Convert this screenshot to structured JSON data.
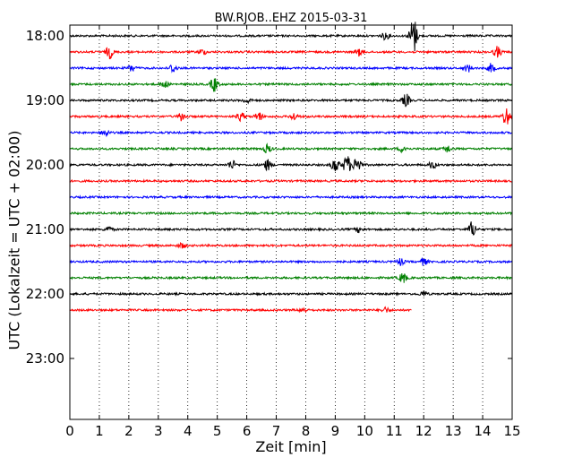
{
  "chart_data": {
    "type": "line",
    "title": "BW.RJOB..EHZ 2015-03-31",
    "xlabel": "Zeit  [min]",
    "ylabel": "UTC (Lokalzeit = UTC + 02:00)",
    "xlim": [
      0,
      15
    ],
    "x_ticks": [
      0,
      1,
      2,
      3,
      4,
      5,
      6,
      7,
      8,
      9,
      10,
      11,
      12,
      13,
      14,
      15
    ],
    "x_tick_labels": [
      "0",
      "1",
      "2",
      "3",
      "4",
      "5",
      "6",
      "7",
      "8",
      "9",
      "10",
      "11",
      "12",
      "13",
      "14",
      "15"
    ],
    "y_tick_labels": [
      "18:00",
      "19:00",
      "20:00",
      "21:00",
      "22:00",
      "23:00"
    ],
    "grid": "vertical-dotted",
    "trace_colors": [
      "#000000",
      "#ff0000",
      "#0000ff",
      "#008000"
    ],
    "series": [
      {
        "start": "18:00",
        "end_min": 15,
        "events": [
          {
            "t": 10.7,
            "amp": 4
          },
          {
            "t": 11.65,
            "amp": 22
          }
        ]
      },
      {
        "start": "18:15",
        "end_min": 15,
        "events": [
          {
            "t": 1.35,
            "amp": 7
          },
          {
            "t": 4.5,
            "amp": 3
          },
          {
            "t": 9.8,
            "amp": 4
          },
          {
            "t": 14.5,
            "amp": 6
          }
        ]
      },
      {
        "start": "18:30",
        "end_min": 15,
        "events": [
          {
            "t": 2.1,
            "amp": 4
          },
          {
            "t": 3.5,
            "amp": 5
          },
          {
            "t": 13.5,
            "amp": 4
          },
          {
            "t": 14.3,
            "amp": 5
          }
        ]
      },
      {
        "start": "18:45",
        "end_min": 15,
        "events": [
          {
            "t": 3.2,
            "amp": 4
          },
          {
            "t": 4.9,
            "amp": 8
          }
        ]
      },
      {
        "start": "19:00",
        "end_min": 15,
        "events": [
          {
            "t": 6.0,
            "amp": 3
          },
          {
            "t": 11.4,
            "amp": 7
          }
        ]
      },
      {
        "start": "19:15",
        "end_min": 15,
        "events": [
          {
            "t": 3.8,
            "amp": 5
          },
          {
            "t": 5.8,
            "amp": 5
          },
          {
            "t": 6.4,
            "amp": 5
          },
          {
            "t": 7.6,
            "amp": 4
          },
          {
            "t": 14.8,
            "amp": 10
          }
        ]
      },
      {
        "start": "19:30",
        "end_min": 15,
        "events": [
          {
            "t": 1.2,
            "amp": 4
          }
        ]
      },
      {
        "start": "19:45",
        "end_min": 15,
        "events": [
          {
            "t": 6.7,
            "amp": 5
          },
          {
            "t": 11.3,
            "amp": 4
          },
          {
            "t": 12.8,
            "amp": 4
          }
        ]
      },
      {
        "start": "20:00",
        "end_min": 15,
        "events": [
          {
            "t": 5.5,
            "amp": 5
          },
          {
            "t": 6.7,
            "amp": 6
          },
          {
            "t": 9.0,
            "amp": 9
          },
          {
            "t": 9.4,
            "amp": 11
          },
          {
            "t": 9.75,
            "amp": 11
          },
          {
            "t": 12.3,
            "amp": 4
          }
        ]
      },
      {
        "start": "20:15",
        "end_min": 15,
        "events": []
      },
      {
        "start": "20:30",
        "end_min": 15,
        "events": []
      },
      {
        "start": "20:45",
        "end_min": 15,
        "events": []
      },
      {
        "start": "21:00",
        "end_min": 15,
        "events": [
          {
            "t": 1.3,
            "amp": 3
          },
          {
            "t": 9.8,
            "amp": 3
          },
          {
            "t": 13.65,
            "amp": 9
          }
        ]
      },
      {
        "start": "21:15",
        "end_min": 15,
        "events": [
          {
            "t": 3.8,
            "amp": 3
          }
        ]
      },
      {
        "start": "21:30",
        "end_min": 15,
        "events": [
          {
            "t": 11.2,
            "amp": 4
          },
          {
            "t": 12.0,
            "amp": 4
          }
        ]
      },
      {
        "start": "21:45",
        "end_min": 15,
        "events": [
          {
            "t": 11.3,
            "amp": 6
          }
        ]
      },
      {
        "start": "22:00",
        "end_min": 15,
        "events": [
          {
            "t": 12.0,
            "amp": 3
          }
        ]
      },
      {
        "start": "22:15",
        "end_min": 11.6,
        "events": [
          {
            "t": 7.9,
            "amp": 3
          },
          {
            "t": 10.7,
            "amp": 3
          }
        ]
      }
    ]
  }
}
